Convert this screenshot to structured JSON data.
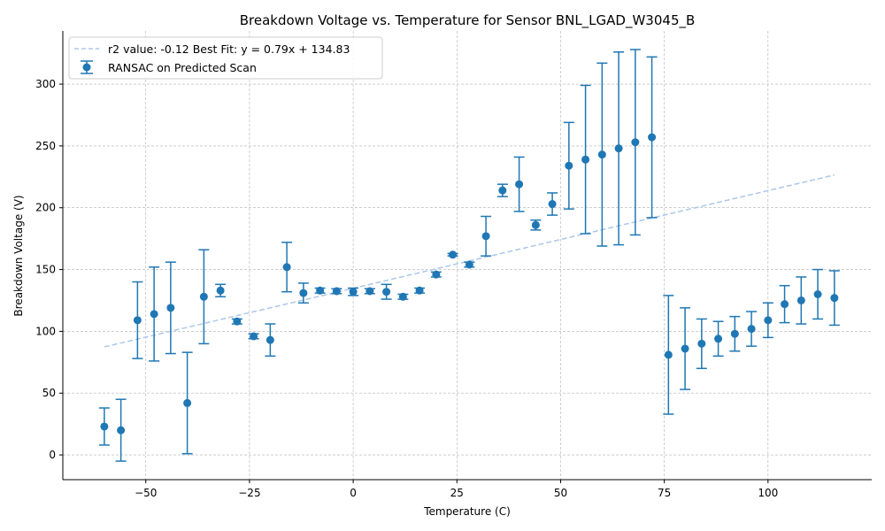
{
  "chart_data": {
    "type": "scatter",
    "title": "Breakdown Voltage vs. Temperature for Sensor BNL_LGAD_W3045_B",
    "xlabel": "Temperature (C)",
    "ylabel": "Breakdown Voltage (V)",
    "xlim": [
      -70,
      125
    ],
    "ylim": [
      -20,
      343
    ],
    "xticks": [
      -50,
      -25,
      0,
      25,
      50,
      75,
      100
    ],
    "yticks": [
      0,
      50,
      100,
      150,
      200,
      250,
      300
    ],
    "xtick_labels": [
      "−50",
      "−25",
      "0",
      "25",
      "50",
      "75",
      "100"
    ],
    "ytick_labels": [
      "0",
      "50",
      "100",
      "150",
      "200",
      "250",
      "300"
    ],
    "grid": true,
    "legend_position": "top-left",
    "colors": {
      "points": "#1f77b4",
      "fit": "#aec7e8",
      "grid": "#b0b0b0"
    },
    "fit": {
      "name": "r2 value: -0.12 Best Fit: y = 0.79x + 134.83",
      "slope": 0.79,
      "intercept": 134.83,
      "x_range": [
        -60,
        116
      ]
    },
    "series": [
      {
        "name": "RANSAC on Predicted Scan",
        "points": [
          {
            "x": -60,
            "y": 23,
            "err": 15
          },
          {
            "x": -56,
            "y": 20,
            "err": 25
          },
          {
            "x": -52,
            "y": 109,
            "err": 31
          },
          {
            "x": -48,
            "y": 114,
            "err": 38
          },
          {
            "x": -44,
            "y": 119,
            "err": 37
          },
          {
            "x": -40,
            "y": 42,
            "err": 41
          },
          {
            "x": -36,
            "y": 128,
            "err": 38
          },
          {
            "x": -32,
            "y": 133,
            "err": 5
          },
          {
            "x": -28,
            "y": 108,
            "err": 2
          },
          {
            "x": -24,
            "y": 96,
            "err": 2
          },
          {
            "x": -20,
            "y": 93,
            "err": 13
          },
          {
            "x": -16,
            "y": 152,
            "err": 20
          },
          {
            "x": -12,
            "y": 131,
            "err": 8
          },
          {
            "x": -8,
            "y": 133,
            "err": 2
          },
          {
            "x": -4,
            "y": 132.5,
            "err": 2
          },
          {
            "x": 0,
            "y": 132,
            "err": 3
          },
          {
            "x": 4,
            "y": 132.5,
            "err": 2
          },
          {
            "x": 8,
            "y": 132,
            "err": 6
          },
          {
            "x": 12,
            "y": 128,
            "err": 2
          },
          {
            "x": 16,
            "y": 133,
            "err": 2
          },
          {
            "x": 20,
            "y": 146,
            "err": 2
          },
          {
            "x": 24,
            "y": 162,
            "err": 1
          },
          {
            "x": 28,
            "y": 154,
            "err": 2
          },
          {
            "x": 32,
            "y": 177,
            "err": 16
          },
          {
            "x": 36,
            "y": 214,
            "err": 5
          },
          {
            "x": 40,
            "y": 219,
            "err": 22
          },
          {
            "x": 44,
            "y": 186,
            "err": 4
          },
          {
            "x": 48,
            "y": 203,
            "err": 9
          },
          {
            "x": 52,
            "y": 234,
            "err": 35
          },
          {
            "x": 56,
            "y": 239,
            "err": 60
          },
          {
            "x": 60,
            "y": 243,
            "err": 74
          },
          {
            "x": 64,
            "y": 248,
            "err": 78
          },
          {
            "x": 68,
            "y": 253,
            "err": 75
          },
          {
            "x": 72,
            "y": 257,
            "err": 65
          },
          {
            "x": 76,
            "y": 81,
            "err": 48
          },
          {
            "x": 80,
            "y": 86,
            "err": 33
          },
          {
            "x": 84,
            "y": 90,
            "err": 20
          },
          {
            "x": 88,
            "y": 94,
            "err": 14
          },
          {
            "x": 92,
            "y": 98,
            "err": 14
          },
          {
            "x": 96,
            "y": 102,
            "err": 14
          },
          {
            "x": 100,
            "y": 109,
            "err": 14
          },
          {
            "x": 104,
            "y": 122,
            "err": 15
          },
          {
            "x": 108,
            "y": 125,
            "err": 19
          },
          {
            "x": 112,
            "y": 130,
            "err": 20
          },
          {
            "x": 116,
            "y": 127,
            "err": 22
          }
        ]
      }
    ]
  }
}
